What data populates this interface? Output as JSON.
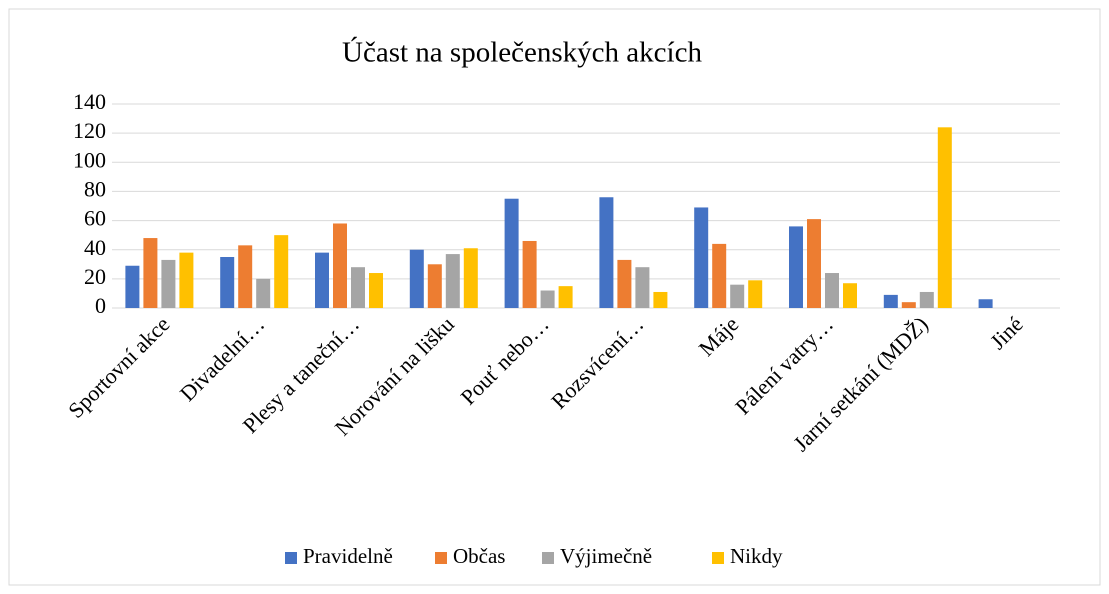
{
  "chart_data": {
    "type": "bar",
    "title": "Účast na společenských akcích",
    "categories": [
      "Sportovní akce",
      "Divadelní…",
      "Plesy a taneční…",
      "Norování na lišku",
      "Pouť nebo…",
      "Rozsvícení…",
      "Máje",
      "Pálení vatry…",
      "Jarní setkání (MDŽ)",
      "Jiné"
    ],
    "series": [
      {
        "name": "Pravidelně",
        "color": "#4472c4",
        "values": [
          29,
          35,
          38,
          40,
          75,
          76,
          69,
          56,
          9,
          6
        ]
      },
      {
        "name": "Občas",
        "color": "#ed7d31",
        "values": [
          48,
          43,
          58,
          30,
          46,
          33,
          44,
          61,
          4,
          0
        ]
      },
      {
        "name": "Výjimečně",
        "color": "#a5a5a5",
        "values": [
          33,
          20,
          28,
          37,
          12,
          28,
          16,
          24,
          11,
          0
        ]
      },
      {
        "name": "Nikdy",
        "color": "#ffc000",
        "values": [
          38,
          50,
          24,
          41,
          15,
          11,
          19,
          17,
          124,
          0
        ]
      }
    ],
    "ylim": [
      0,
      140
    ],
    "yticks": [
      0,
      20,
      40,
      60,
      80,
      100,
      120,
      140
    ],
    "grid": true,
    "legend": "bottom"
  }
}
